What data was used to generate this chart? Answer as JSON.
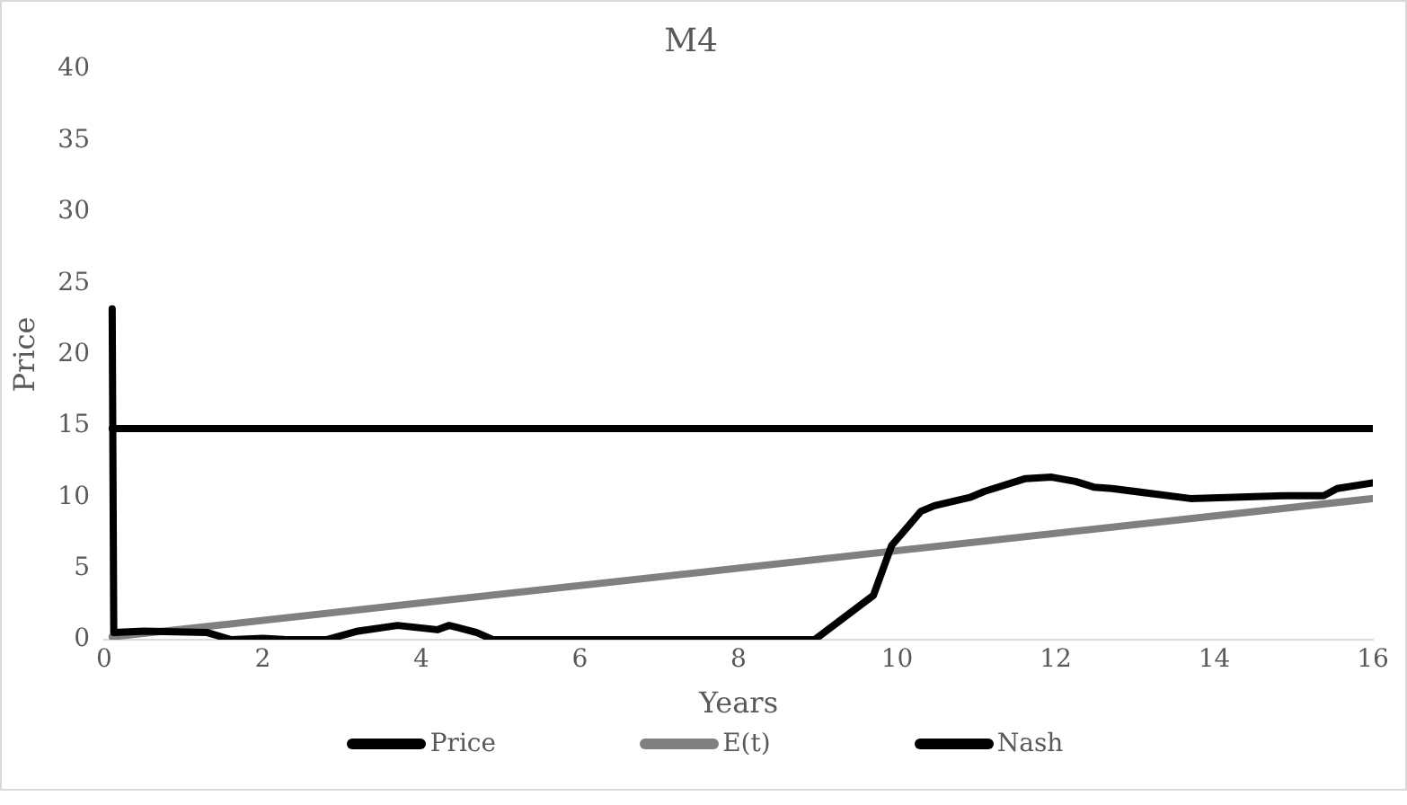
{
  "chart_data": {
    "type": "line",
    "title": "M4",
    "xlabel": "Years",
    "ylabel": "Price",
    "xlim": [
      0,
      16
    ],
    "xticks": [
      0,
      2,
      4,
      6,
      8,
      10,
      12,
      14,
      16
    ],
    "ylim": [
      0,
      40
    ],
    "yticks": [
      0,
      5,
      10,
      15,
      20,
      25,
      30,
      35,
      40
    ],
    "grid": false,
    "legend": "bottom",
    "marker": "none",
    "line_style": "solid",
    "series": [
      {
        "name": "Price",
        "color": "#000000",
        "x": [
          0.1,
          0.12,
          0.5,
          1.3,
          1.6,
          2.0,
          2.3,
          2.8,
          3.2,
          3.7,
          4.2,
          4.35,
          4.7,
          4.9,
          8.96,
          9.7,
          9.93,
          10.3,
          10.47,
          10.93,
          11.1,
          11.62,
          11.95,
          12.25,
          12.48,
          12.71,
          13.7,
          14.87,
          15.38,
          15.55,
          16
        ],
        "values": [
          23.2,
          0.5,
          0.6,
          0.5,
          0,
          0.1,
          0,
          0,
          0.6,
          1.0,
          0.7,
          1.0,
          0.5,
          0,
          0,
          3.1,
          6.6,
          9.0,
          9.4,
          10.0,
          10.4,
          11.3,
          11.4,
          11.1,
          10.7,
          10.6,
          9.9,
          10.1,
          10.1,
          10.6,
          11.0
        ]
      },
      {
        "name": "E(t)",
        "color": "#808080",
        "x": [
          0.1,
          16
        ],
        "values": [
          0.2,
          9.9
        ]
      },
      {
        "name": "Nash",
        "color": "#000000",
        "x": [
          0.1,
          16
        ],
        "values": [
          14.8,
          14.8
        ]
      }
    ]
  }
}
